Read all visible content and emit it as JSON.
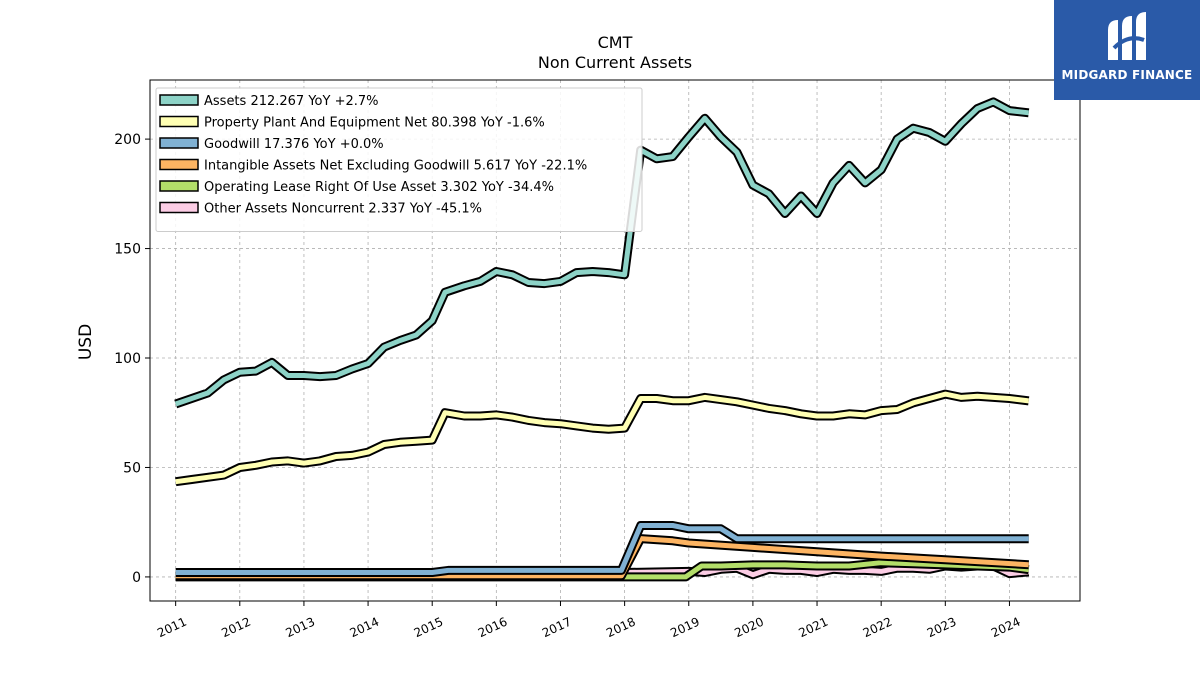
{
  "logo": {
    "text": "MIDGARD FINANCE",
    "icon": "midgard-logo-icon",
    "color": "#2a5aa8"
  },
  "chart_data": {
    "type": "line",
    "title": "CMT",
    "subtitle": "Non Current  Assets",
    "xlabel": "",
    "ylabel": "USD",
    "xlim": [
      2010.6,
      2025.1
    ],
    "ylim": [
      -11,
      227
    ],
    "yticks": [
      0,
      50,
      100,
      150,
      200
    ],
    "xticks": [
      "2011",
      "2012",
      "2013",
      "2014",
      "2015",
      "2016",
      "2017",
      "2018",
      "2019",
      "2020",
      "2021",
      "2022",
      "2023",
      "2024"
    ],
    "grid": true,
    "legend_position": "top-left",
    "series": [
      {
        "name": "Assets  212.267 YoY +2.7%",
        "color": "#8dd3c7",
        "x": [
          2011.0,
          2011.25,
          2011.5,
          2011.75,
          2012.0,
          2012.25,
          2012.5,
          2012.75,
          2013.0,
          2013.25,
          2013.5,
          2013.75,
          2014.0,
          2014.25,
          2014.5,
          2014.75,
          2015.0,
          2015.2,
          2015.5,
          2015.75,
          2016.0,
          2016.25,
          2016.5,
          2016.75,
          2017.0,
          2017.25,
          2017.5,
          2017.75,
          2018.0,
          2018.25,
          2018.5,
          2018.75,
          2019.0,
          2019.25,
          2019.5,
          2019.75,
          2020.0,
          2020.25,
          2020.5,
          2020.75,
          2021.0,
          2021.25,
          2021.5,
          2021.75,
          2022.0,
          2022.25,
          2022.5,
          2022.75,
          2023.0,
          2023.25,
          2023.5,
          2023.75,
          2024.0,
          2024.3
        ],
        "values": [
          79,
          81.5,
          84,
          90,
          93.5,
          94,
          98,
          92,
          92,
          91.5,
          92,
          95,
          97.5,
          105,
          108,
          110.5,
          117,
          130,
          133,
          135,
          139.5,
          138,
          134.5,
          134,
          135,
          139,
          139.5,
          139,
          138,
          195,
          191,
          192,
          201,
          209.5,
          201,
          194,
          179,
          175,
          166,
          174,
          166,
          180,
          188,
          180,
          186,
          200,
          205,
          203,
          199,
          207,
          214,
          217,
          213,
          212
        ]
      },
      {
        "name": "Property Plant And Equipment Net  80.398 YoY -1.6%",
        "color": "#ffffb3",
        "x": [
          2011.0,
          2011.25,
          2011.5,
          2011.75,
          2012.0,
          2012.25,
          2012.5,
          2012.75,
          2013.0,
          2013.25,
          2013.5,
          2013.75,
          2014.0,
          2014.25,
          2014.5,
          2014.75,
          2015.0,
          2015.2,
          2015.5,
          2015.75,
          2016.0,
          2016.25,
          2016.5,
          2016.75,
          2017.0,
          2017.25,
          2017.5,
          2017.75,
          2018.0,
          2018.25,
          2018.5,
          2018.75,
          2019.0,
          2019.25,
          2019.5,
          2019.75,
          2020.0,
          2020.25,
          2020.5,
          2020.75,
          2021.0,
          2021.25,
          2021.5,
          2021.75,
          2022.0,
          2022.25,
          2022.5,
          2022.75,
          2023.0,
          2023.25,
          2023.5,
          2023.75,
          2024.0,
          2024.3
        ],
        "values": [
          43.5,
          44.5,
          45.5,
          46.5,
          50,
          51,
          52.5,
          53,
          52,
          53,
          55,
          55.5,
          57,
          60.5,
          61.5,
          62,
          62.5,
          75,
          73.5,
          73.5,
          74,
          73,
          71.5,
          70.5,
          70,
          69,
          68,
          67.5,
          68,
          81.5,
          81.5,
          80.5,
          80.5,
          82,
          81,
          80,
          78.5,
          77,
          76,
          74.5,
          73.5,
          73.5,
          74.5,
          74,
          76,
          76.5,
          79.5,
          81.5,
          83.5,
          82,
          82.5,
          82,
          81.5,
          80.4
        ]
      },
      {
        "name": "Goodwill  17.376 YoY +0.0%",
        "color": "#80b1d3",
        "x": [
          2011.0,
          2015.0,
          2015.25,
          2017.95,
          2018.25,
          2018.75,
          2019.0,
          2019.5,
          2019.75,
          2024.3
        ],
        "values": [
          2,
          2,
          3,
          3,
          23.5,
          23.5,
          22,
          22,
          17.4,
          17.4
        ]
      },
      {
        "name": "Intangible Assets Net Excluding Goodwill  5.617 YoY -22.1%",
        "color": "#fdb462",
        "x": [
          2011.0,
          2017.95,
          2018.25,
          2018.75,
          2019.0,
          2020.0,
          2021.0,
          2022.0,
          2023.0,
          2024.3
        ],
        "values": [
          0.5,
          0.5,
          17.5,
          16.5,
          15.5,
          13.5,
          11.5,
          9.5,
          7.8,
          5.6
        ]
      },
      {
        "name": "Operating Lease Right Of Use Asset  3.302 YoY -34.4%",
        "color": "#b3de69",
        "x": [
          2011.0,
          2018.95,
          2019.2,
          2019.5,
          2020.0,
          2020.5,
          2021.0,
          2021.5,
          2022.0,
          2022.5,
          2023.0,
          2023.5,
          2024.0,
          2024.3
        ],
        "values": [
          0,
          0,
          5,
          5,
          5.5,
          5.5,
          5,
          5,
          6.5,
          6,
          5.5,
          5,
          4.5,
          3.3
        ]
      },
      {
        "name": "Other Assets Noncurrent  2.337 YoY -45.1%",
        "color": "#fccde5",
        "x": [
          2011.0,
          2017.0,
          2017.75,
          2018.0,
          2019.0,
          2019.25,
          2019.5,
          2019.75,
          2020.0,
          2020.25,
          2020.5,
          2020.75,
          2021.0,
          2021.25,
          2021.5,
          2021.75,
          2022.0,
          2022.25,
          2022.5,
          2022.75,
          2023.0,
          2023.25,
          2023.5,
          2023.75,
          2024.0,
          2024.3
        ],
        "values": [
          0.3,
          0.3,
          1,
          2,
          2.5,
          2,
          3.5,
          4,
          1,
          3.5,
          3,
          3,
          2,
          3.5,
          3,
          3,
          2.5,
          4,
          4,
          3.5,
          5,
          4.5,
          5,
          5,
          1.5,
          2.3
        ]
      }
    ]
  }
}
